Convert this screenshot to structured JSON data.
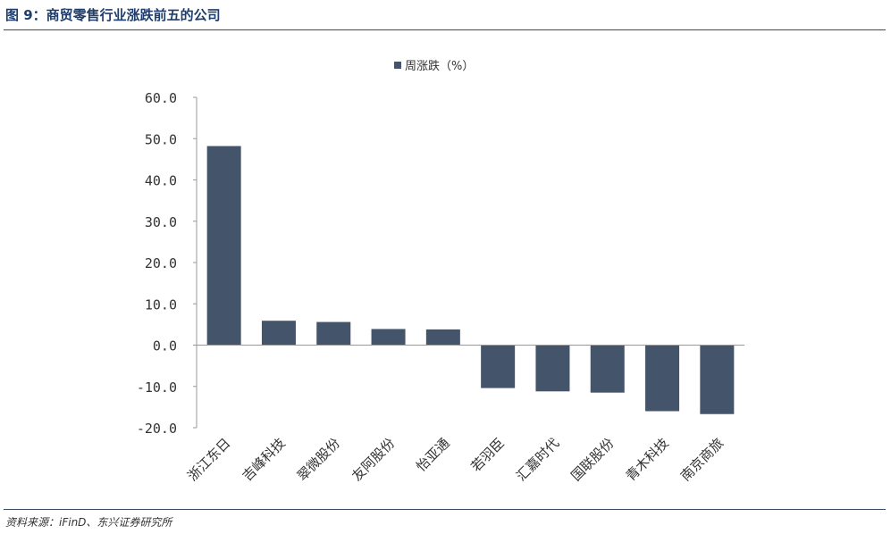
{
  "figure": {
    "title": "图 9：商贸零售行业涨跌前五的公司",
    "source": "资料来源：iFinD、东兴证券研究所"
  },
  "colors": {
    "bar": "#44546a",
    "title": "#1f3d6b",
    "axis": "#999999"
  },
  "chart_data": {
    "type": "bar",
    "categories": [
      "浙江东日",
      "吉峰科技",
      "翠微股份",
      "友阿股份",
      "怡亚通",
      "若羽臣",
      "汇嘉时代",
      "国联股份",
      "青木科技",
      "南京商旅"
    ],
    "series": [
      {
        "name": "周涨跌（%）",
        "values": [
          48.2,
          5.9,
          5.6,
          3.9,
          3.8,
          -10.4,
          -11.2,
          -11.5,
          -16.0,
          -16.7
        ]
      }
    ],
    "ylim": [
      -20,
      60
    ],
    "yticks": [
      "60.0",
      "50.0",
      "40.0",
      "30.0",
      "20.0",
      "10.0",
      "0.0",
      "-10.0",
      "-20.0"
    ],
    "ytick_values": [
      60,
      50,
      40,
      30,
      20,
      10,
      0,
      -10,
      -20
    ],
    "legend_position": "top-center",
    "grid": false
  }
}
